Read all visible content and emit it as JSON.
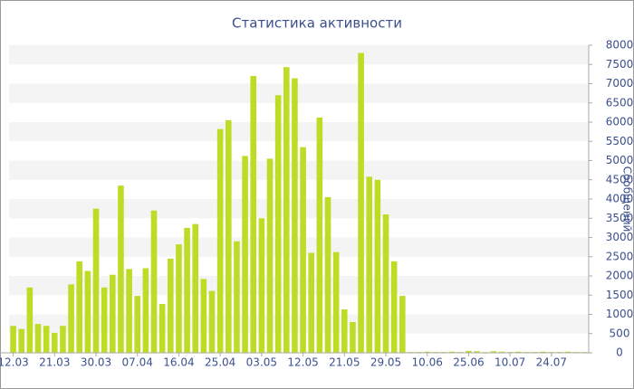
{
  "chart_data": {
    "type": "bar",
    "title": "Статистика активности",
    "y_label": "Сообщений",
    "categories": [
      "12.03",
      null,
      null,
      null,
      null,
      "21.03",
      null,
      null,
      null,
      null,
      "30.03",
      null,
      null,
      null,
      null,
      "07.04",
      null,
      null,
      null,
      null,
      "16.04",
      null,
      null,
      null,
      null,
      "25.04",
      null,
      null,
      null,
      null,
      "03.05",
      null,
      null,
      null,
      null,
      "12.05",
      null,
      null,
      null,
      null,
      "21.05",
      null,
      null,
      null,
      null,
      "29.05",
      null,
      null,
      null,
      null,
      "10.06",
      null,
      null,
      null,
      null,
      "25.06",
      null,
      null,
      null,
      null,
      "10.07",
      null,
      null,
      null,
      null,
      "24.07",
      null,
      null,
      null,
      null
    ],
    "values": [
      700,
      620,
      1700,
      750,
      700,
      520,
      700,
      1780,
      2380,
      2130,
      3750,
      1700,
      2030,
      4350,
      2180,
      1480,
      2200,
      3700,
      1270,
      2450,
      2820,
      3250,
      3350,
      1920,
      1610,
      5820,
      6050,
      2900,
      5120,
      7200,
      3500,
      5050,
      6700,
      7430,
      7140,
      5350,
      2600,
      6120,
      4050,
      2620,
      1130,
      800,
      7800,
      4580,
      4500,
      3600,
      2380,
      1480,
      20,
      20,
      30,
      20,
      20,
      30,
      20,
      50,
      40,
      20,
      40,
      30,
      20,
      30,
      20,
      20,
      30,
      20,
      20,
      30,
      20,
      20
    ],
    "color": "#bcdc26",
    "ylim": [
      0,
      8000
    ],
    "yticks": [
      0,
      500,
      1000,
      1500,
      2000,
      2500,
      3000,
      3500,
      4000,
      4500,
      5000,
      5500,
      6000,
      6500,
      7000,
      7500,
      8000
    ],
    "grid": true
  }
}
